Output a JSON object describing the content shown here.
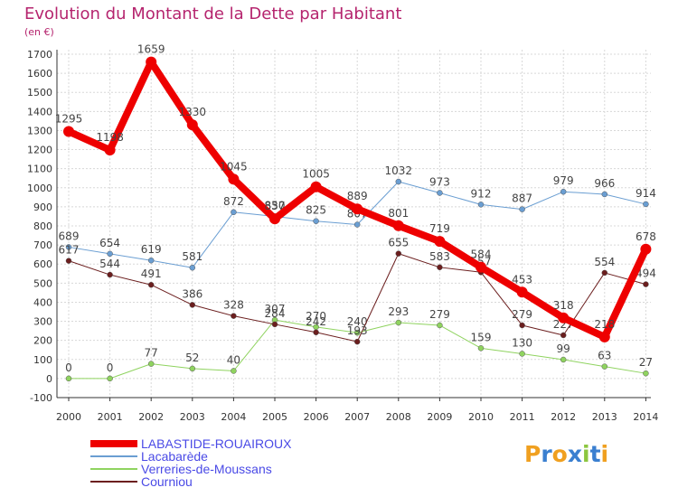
{
  "header": {
    "title": "Evolution du Montant de la Dette par Habitant",
    "unit": "(en €)"
  },
  "logo": {
    "letters": [
      "P",
      "r",
      "o",
      "x",
      "i",
      "t",
      "i"
    ],
    "colors": [
      "#f0a020",
      "#3a7fd0",
      "#f0a020",
      "#3a7fd0",
      "#8cc63f",
      "#3a7fd0",
      "#f0a020"
    ]
  },
  "chart_data": {
    "type": "line",
    "title": "Evolution du Montant de la Dette par Habitant",
    "ylabel": "(en €)",
    "xlabel": "",
    "ylim": [
      -100,
      1700
    ],
    "yticks": [
      "-100",
      "0",
      "100",
      "200",
      "300",
      "400",
      "500",
      "600",
      "700",
      "800",
      "900",
      "1000",
      "1100",
      "1200",
      "1300",
      "1400",
      "1500",
      "1600",
      "1700"
    ],
    "categories": [
      "2000",
      "2001",
      "2002",
      "2003",
      "2004",
      "2005",
      "2006",
      "2007",
      "2008",
      "2009",
      "2010",
      "2011",
      "2012",
      "2013",
      "2014"
    ],
    "series": [
      {
        "name": "Lacabarède",
        "color": "#6a9ed2",
        "width": 1,
        "values": [
          689,
          654,
          619,
          581,
          872,
          850,
          825,
          807,
          1032,
          973,
          912,
          887,
          979,
          966,
          914
        ],
        "labels": [
          "689",
          "654",
          "619",
          "581",
          "872",
          "850",
          "825",
          "807",
          "1032",
          "973",
          "912",
          "887",
          "979",
          "966",
          "914"
        ]
      },
      {
        "name": "Verreries-de-Moussans",
        "color": "#8fd35f",
        "width": 1,
        "values": [
          0,
          0,
          77,
          52,
          40,
          307,
          270,
          240,
          293,
          279,
          159,
          130,
          99,
          63,
          27
        ],
        "labels": [
          "0",
          "0",
          "77",
          "52",
          "40",
          "307",
          "270",
          "240",
          "293",
          "279",
          "159",
          "130",
          "99",
          "63",
          "27"
        ]
      },
      {
        "name": "Courniou",
        "color": "#6b1e1e",
        "width": 1,
        "values": [
          617,
          544,
          491,
          386,
          328,
          284,
          242,
          193,
          655,
          583,
          557,
          279,
          227,
          554,
          494
        ],
        "labels": [
          "617",
          "544",
          "491",
          "386",
          "328",
          "284",
          "242",
          "193",
          "655",
          "583",
          "557",
          "279",
          "227",
          "554",
          "494"
        ]
      },
      {
        "name": "LABASTIDE-ROUAIROUX",
        "color": "#ee0000",
        "width": 8,
        "values": [
          1295,
          1198,
          1659,
          1330,
          1045,
          837,
          1005,
          889,
          801,
          719,
          584,
          453,
          318,
          218,
          678
        ],
        "labels": [
          "1295",
          "1198",
          "1659",
          "1330",
          "1045",
          "837",
          "1005",
          "889",
          "801",
          "719",
          "584",
          "453",
          "318",
          "218",
          "678"
        ]
      }
    ],
    "legend": {
      "position": "bottom-left",
      "items": [
        {
          "label": "LABASTIDE-ROUAIROUX",
          "color": "#ee0000",
          "thick": true
        },
        {
          "label": "Lacabarède",
          "color": "#6a9ed2",
          "thick": false
        },
        {
          "label": "Verreries-de-Moussans",
          "color": "#8fd35f",
          "thick": false
        },
        {
          "label": "Courniou",
          "color": "#6b1e1e",
          "thick": false
        }
      ]
    }
  }
}
